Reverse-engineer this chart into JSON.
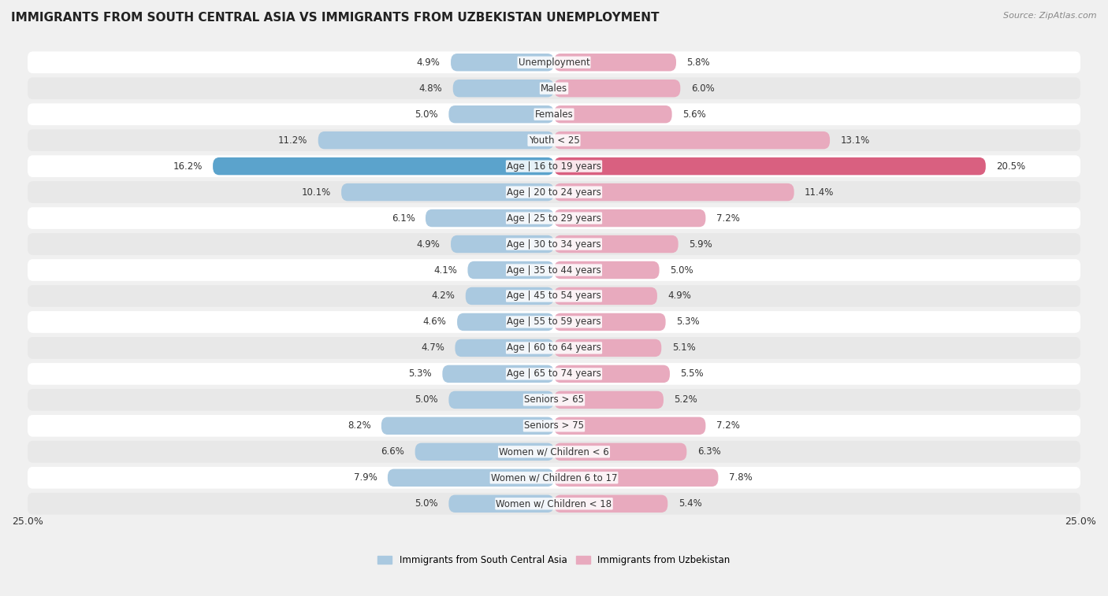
{
  "title": "IMMIGRANTS FROM SOUTH CENTRAL ASIA VS IMMIGRANTS FROM UZBEKISTAN UNEMPLOYMENT",
  "source": "Source: ZipAtlas.com",
  "categories": [
    "Unemployment",
    "Males",
    "Females",
    "Youth < 25",
    "Age | 16 to 19 years",
    "Age | 20 to 24 years",
    "Age | 25 to 29 years",
    "Age | 30 to 34 years",
    "Age | 35 to 44 years",
    "Age | 45 to 54 years",
    "Age | 55 to 59 years",
    "Age | 60 to 64 years",
    "Age | 65 to 74 years",
    "Seniors > 65",
    "Seniors > 75",
    "Women w/ Children < 6",
    "Women w/ Children 6 to 17",
    "Women w/ Children < 18"
  ],
  "left_values": [
    4.9,
    4.8,
    5.0,
    11.2,
    16.2,
    10.1,
    6.1,
    4.9,
    4.1,
    4.2,
    4.6,
    4.7,
    5.3,
    5.0,
    8.2,
    6.6,
    7.9,
    5.0
  ],
  "right_values": [
    5.8,
    6.0,
    5.6,
    13.1,
    20.5,
    11.4,
    7.2,
    5.9,
    5.0,
    4.9,
    5.3,
    5.1,
    5.5,
    5.2,
    7.2,
    6.3,
    7.8,
    5.4
  ],
  "left_color": "#aac9e0",
  "right_color": "#e8aabe",
  "left_highlight_color": "#5ba3cc",
  "right_highlight_color": "#d96080",
  "highlight_index": 4,
  "left_label": "Immigrants from South Central Asia",
  "right_label": "Immigrants from Uzbekistan",
  "max_val": 25.0,
  "bg_color": "#f0f0f0",
  "row_bg_light": "#ffffff",
  "row_bg_dark": "#e8e8e8",
  "title_fontsize": 11,
  "source_fontsize": 8,
  "label_fontsize": 8.5,
  "value_fontsize": 8.5,
  "axis_label_fontsize": 9
}
